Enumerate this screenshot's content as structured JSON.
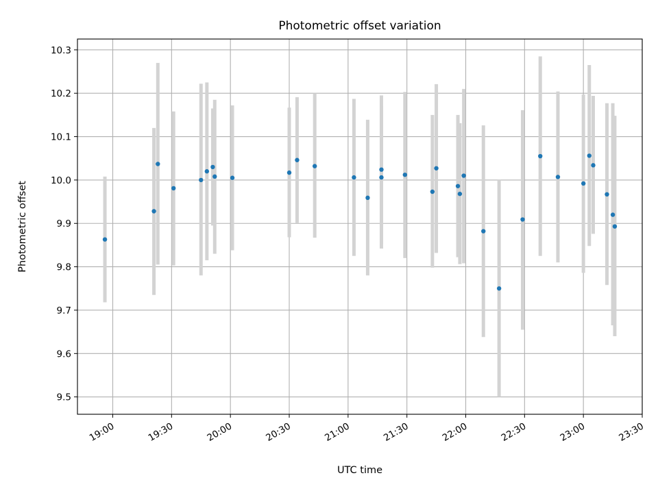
{
  "chart_data": {
    "type": "scatter",
    "title": "Photometric offset variation",
    "xlabel": "UTC time",
    "ylabel": "Photometric offset",
    "grid": true,
    "colors": {
      "points": "#1f77b4",
      "errorbars": "#d3d3d3",
      "grid": "#b0b0b0"
    },
    "xlim": [
      "18:42",
      "23:30"
    ],
    "ylim": [
      9.46,
      10.325
    ],
    "x_ticks": [
      "19:00",
      "19:30",
      "20:00",
      "20:30",
      "21:00",
      "21:30",
      "22:00",
      "22:30",
      "23:00",
      "23:30"
    ],
    "y_ticks": [
      "9.5",
      "9.6",
      "9.7",
      "9.8",
      "9.9",
      "10.0",
      "10.1",
      "10.2",
      "10.3"
    ],
    "points": [
      {
        "x": "18:56",
        "y": 9.863,
        "ylow": 9.718,
        "yhigh": 10.008
      },
      {
        "x": "19:21",
        "y": 9.928,
        "ylow": 9.735,
        "yhigh": 10.12
      },
      {
        "x": "19:23",
        "y": 10.037,
        "ylow": 9.805,
        "yhigh": 10.27
      },
      {
        "x": "19:31",
        "y": 9.981,
        "ylow": 9.803,
        "yhigh": 10.158
      },
      {
        "x": "19:45",
        "y": 10.0,
        "ylow": 9.78,
        "yhigh": 10.222
      },
      {
        "x": "19:48",
        "y": 10.02,
        "ylow": 9.815,
        "yhigh": 10.225
      },
      {
        "x": "19:51",
        "y": 10.03,
        "ylow": 9.895,
        "yhigh": 10.165
      },
      {
        "x": "19:52",
        "y": 10.008,
        "ylow": 9.83,
        "yhigh": 10.185
      },
      {
        "x": "20:01",
        "y": 10.005,
        "ylow": 9.838,
        "yhigh": 10.172
      },
      {
        "x": "20:30",
        "y": 10.017,
        "ylow": 9.868,
        "yhigh": 10.167
      },
      {
        "x": "20:34",
        "y": 10.046,
        "ylow": 9.901,
        "yhigh": 10.191
      },
      {
        "x": "20:43",
        "y": 10.032,
        "ylow": 9.867,
        "yhigh": 10.2
      },
      {
        "x": "21:03",
        "y": 10.006,
        "ylow": 9.825,
        "yhigh": 10.187
      },
      {
        "x": "21:10",
        "y": 9.959,
        "ylow": 9.78,
        "yhigh": 10.139
      },
      {
        "x": "21:17",
        "y": 10.006,
        "ylow": 9.842,
        "yhigh": 10.17
      },
      {
        "x": "21:17",
        "y": 10.024,
        "ylow": 9.853,
        "yhigh": 10.195
      },
      {
        "x": "21:29",
        "y": 10.012,
        "ylow": 9.82,
        "yhigh": 10.203
      },
      {
        "x": "21:43",
        "y": 9.973,
        "ylow": 9.798,
        "yhigh": 10.15
      },
      {
        "x": "21:45",
        "y": 10.027,
        "ylow": 9.832,
        "yhigh": 10.221
      },
      {
        "x": "21:56",
        "y": 9.986,
        "ylow": 9.822,
        "yhigh": 10.15
      },
      {
        "x": "21:57",
        "y": 9.968,
        "ylow": 9.806,
        "yhigh": 10.131
      },
      {
        "x": "21:59",
        "y": 10.01,
        "ylow": 9.808,
        "yhigh": 10.21
      },
      {
        "x": "22:09",
        "y": 9.882,
        "ylow": 9.638,
        "yhigh": 10.126
      },
      {
        "x": "22:17",
        "y": 9.75,
        "ylow": 9.5,
        "yhigh": 10.0
      },
      {
        "x": "22:29",
        "y": 9.909,
        "ylow": 9.655,
        "yhigh": 10.161
      },
      {
        "x": "22:38",
        "y": 10.055,
        "ylow": 9.825,
        "yhigh": 10.285
      },
      {
        "x": "22:47",
        "y": 10.007,
        "ylow": 9.81,
        "yhigh": 10.204
      },
      {
        "x": "23:00",
        "y": 9.992,
        "ylow": 9.786,
        "yhigh": 10.197
      },
      {
        "x": "23:03",
        "y": 10.056,
        "ylow": 9.848,
        "yhigh": 10.265
      },
      {
        "x": "23:05",
        "y": 10.034,
        "ylow": 9.876,
        "yhigh": 10.194
      },
      {
        "x": "23:12",
        "y": 9.967,
        "ylow": 9.758,
        "yhigh": 10.177
      },
      {
        "x": "23:15",
        "y": 9.92,
        "ylow": 9.665,
        "yhigh": 10.177
      },
      {
        "x": "23:16",
        "y": 9.893,
        "ylow": 9.64,
        "yhigh": 10.148
      }
    ]
  }
}
